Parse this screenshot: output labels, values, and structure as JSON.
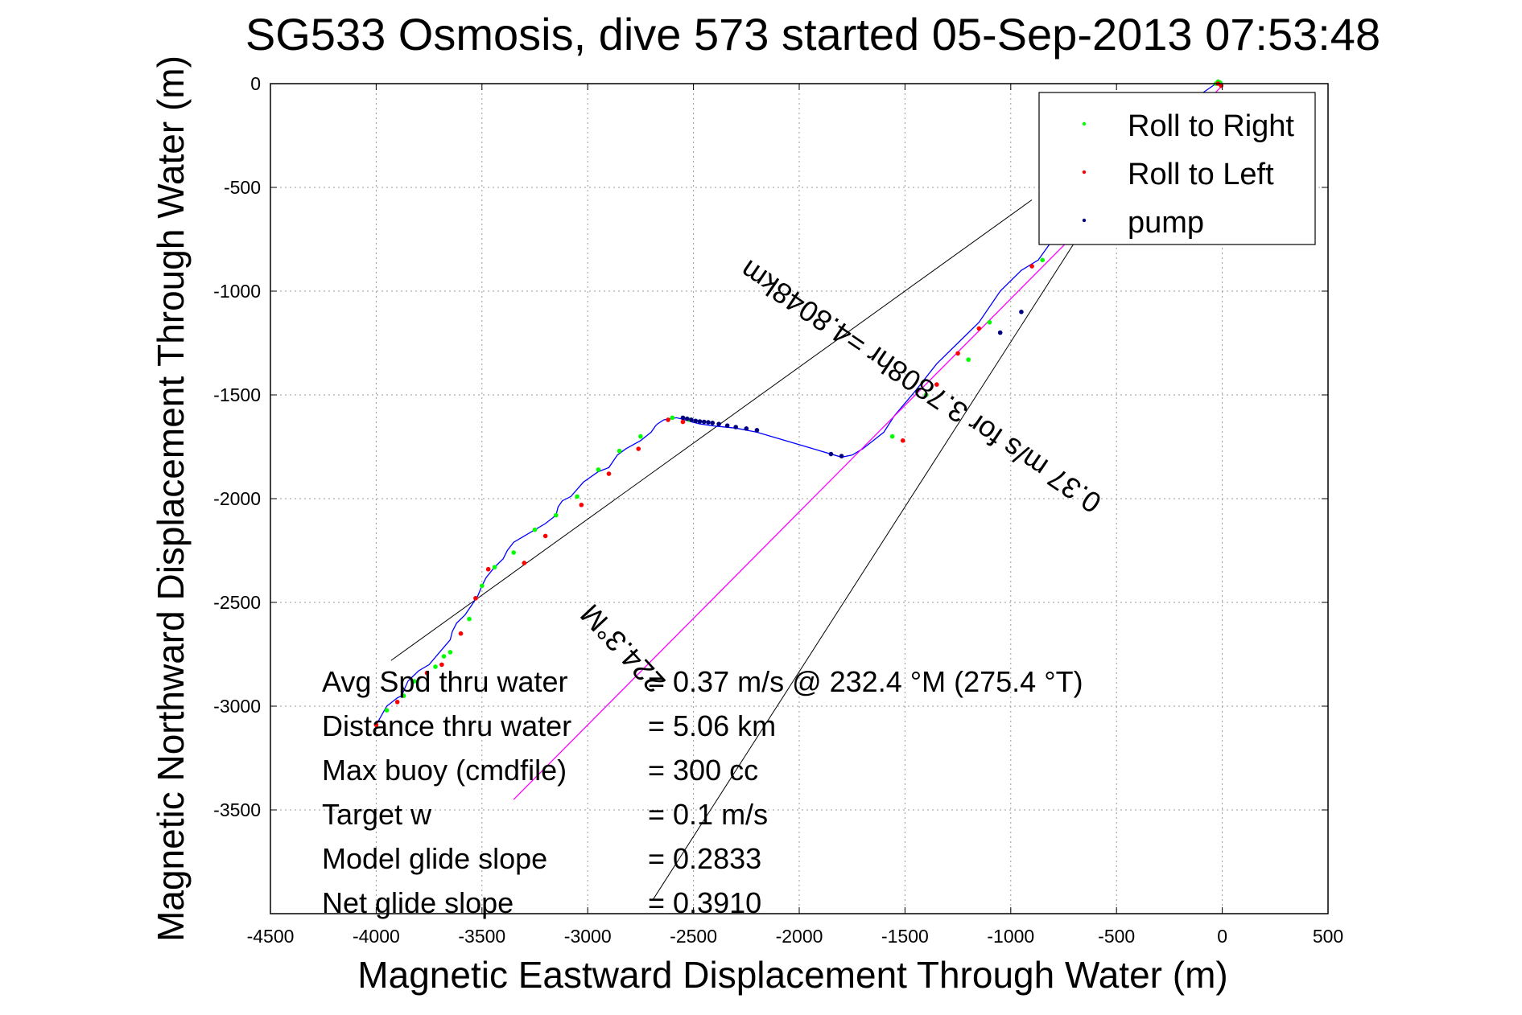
{
  "chart_data": {
    "type": "scatter",
    "title": "SG533 Osmosis, dive 573 started 05-Sep-2013 07:53:48",
    "xlabel": "Magnetic Eastward Displacement Through Water (m)",
    "ylabel": "Magnetic Northward Displacement Through Water (m)",
    "xlim": [
      -4500,
      500
    ],
    "ylim": [
      -4000,
      0
    ],
    "xticks": [
      -4500,
      -4000,
      -3500,
      -3000,
      -2500,
      -2000,
      -1500,
      -1000,
      -500,
      0,
      500
    ],
    "yticks": [
      0,
      -500,
      -1000,
      -1500,
      -2000,
      -2500,
      -3000,
      -3500
    ],
    "xtick_labels": [
      "-4500",
      "-4000",
      "-3500",
      "-3000",
      "-2500",
      "-2000",
      "-1500",
      "-1000",
      "-500",
      "0",
      "500"
    ],
    "ytick_labels": [
      "0",
      "-500",
      "-1000",
      "-1500",
      "-2000",
      "-2500",
      "-3000",
      "-3500"
    ],
    "grid": true,
    "legend_position": "top-right",
    "legend": [
      {
        "label": "Roll to Right",
        "color": "#00ff00"
      },
      {
        "label": "Roll to Left",
        "color": "#ff0000"
      },
      {
        "label": "pump",
        "color": "#000080"
      }
    ],
    "series": [
      {
        "name": "track",
        "kind": "line",
        "color": "#0000ff",
        "x": [
          -4000,
          -3950,
          -3900,
          -3880,
          -3850,
          -3800,
          -3750,
          -3700,
          -3650,
          -3640,
          -3620,
          -3580,
          -3520,
          -3500,
          -3480,
          -3440,
          -3400,
          -3390,
          -3380,
          -3350,
          -3300,
          -3200,
          -3150,
          -3140,
          -3120,
          -3080,
          -3020,
          -2950,
          -2900,
          -2880,
          -2860,
          -2820,
          -2750,
          -2700,
          -2680,
          -2670,
          -2640,
          -2580,
          -2540,
          -2510,
          -2470,
          -2400,
          -2300,
          -2200,
          -1800,
          -1750,
          -1700,
          -1650,
          -1600,
          -1550,
          -1450,
          -1350,
          -1250,
          -1150,
          -1050,
          -950,
          -870,
          -800,
          -700,
          -500,
          -300,
          -100,
          -30,
          -10,
          0
        ],
        "y": [
          -3090,
          -3000,
          -2960,
          -2950,
          -2880,
          -2830,
          -2800,
          -2740,
          -2680,
          -2640,
          -2600,
          -2560,
          -2470,
          -2420,
          -2380,
          -2330,
          -2290,
          -2270,
          -2250,
          -2210,
          -2180,
          -2120,
          -2080,
          -2040,
          -2010,
          -1990,
          -1920,
          -1870,
          -1850,
          -1820,
          -1790,
          -1760,
          -1720,
          -1680,
          -1650,
          -1640,
          -1620,
          -1610,
          -1620,
          -1630,
          -1640,
          -1650,
          -1660,
          -1680,
          -1800,
          -1790,
          -1760,
          -1720,
          -1680,
          -1600,
          -1480,
          -1350,
          -1250,
          -1150,
          -1000,
          -900,
          -850,
          -750,
          -600,
          -400,
          -200,
          -50,
          0,
          0,
          -10
        ]
      },
      {
        "name": "heading",
        "kind": "line",
        "color": "#ff00ff",
        "x": [
          -3350,
          0
        ],
        "y": [
          -3450,
          -10
        ]
      }
    ],
    "envelope_lines": [
      {
        "x": [
          -3930,
          -900
        ],
        "y": [
          -2780,
          -560
        ]
      },
      {
        "x": [
          -2690,
          -550
        ],
        "y": [
          -3930,
          -530
        ]
      }
    ],
    "markers": {
      "roll_right": {
        "x": [
          -3950,
          -3870,
          -3820,
          -3720,
          -3680,
          -3650,
          -3560,
          -3500,
          -3440,
          -3350,
          -3250,
          -3150,
          -3050,
          -2950,
          -2850,
          -2750,
          -2600,
          -2520,
          -1560,
          -1400,
          -1200,
          -1100,
          -850,
          -30,
          -20,
          -10
        ],
        "y": [
          -3020,
          -2950,
          -2880,
          -2810,
          -2760,
          -2740,
          -2580,
          -2420,
          -2330,
          -2260,
          -2150,
          -2080,
          -1990,
          -1860,
          -1770,
          -1700,
          -1610,
          -1620,
          -1700,
          -1500,
          -1330,
          -1150,
          -850,
          0,
          10,
          5
        ]
      },
      "roll_left": {
        "x": [
          -4000,
          -3900,
          -3760,
          -3690,
          -3600,
          -3530,
          -3470,
          -3300,
          -3200,
          -3030,
          -2900,
          -2760,
          -2620,
          -2550,
          -1510,
          -1350,
          -1250,
          -1150,
          -900,
          -20,
          -5
        ],
        "y": [
          -3090,
          -2980,
          -2840,
          -2800,
          -2650,
          -2480,
          -2340,
          -2310,
          -2180,
          -2030,
          -1880,
          -1760,
          -1620,
          -1630,
          -1720,
          -1450,
          -1300,
          -1180,
          -880,
          0,
          -10
        ]
      },
      "pump": {
        "x": [
          -2550,
          -2530,
          -2510,
          -2490,
          -2470,
          -2450,
          -2430,
          -2410,
          -2380,
          -2340,
          -2300,
          -2250,
          -2200,
          -1850,
          -1800,
          -1050,
          -950
        ],
        "y": [
          -1610,
          -1615,
          -1620,
          -1625,
          -1628,
          -1630,
          -1632,
          -1635,
          -1640,
          -1648,
          -1655,
          -1662,
          -1670,
          -1785,
          -1795,
          -1200,
          -1100
        ]
      }
    },
    "rotated_labels": [
      {
        "text": "224.3°M",
        "x": -2800,
        "y": -2690,
        "angle": 227
      },
      {
        "text": "0.37 m/s for 3.7808hr =4.8048km",
        "x": -1400,
        "y": -1420,
        "angle": 214
      }
    ],
    "info_table": [
      {
        "label": "Avg Spd thru water",
        "value": "=  0.37 m/s @ 232.4 °M (275.4 °T)"
      },
      {
        "label": "Distance thru water",
        "value": "=  5.06 km"
      },
      {
        "label": "Max buoy (cmdfile)",
        "value": "= 300 cc"
      },
      {
        "label": "Target w",
        "value": "= 0.1 m/s"
      },
      {
        "label": "Model glide slope",
        "value": "= 0.2833"
      },
      {
        "label": "Net glide slope",
        "value": "= 0.3910"
      }
    ]
  }
}
